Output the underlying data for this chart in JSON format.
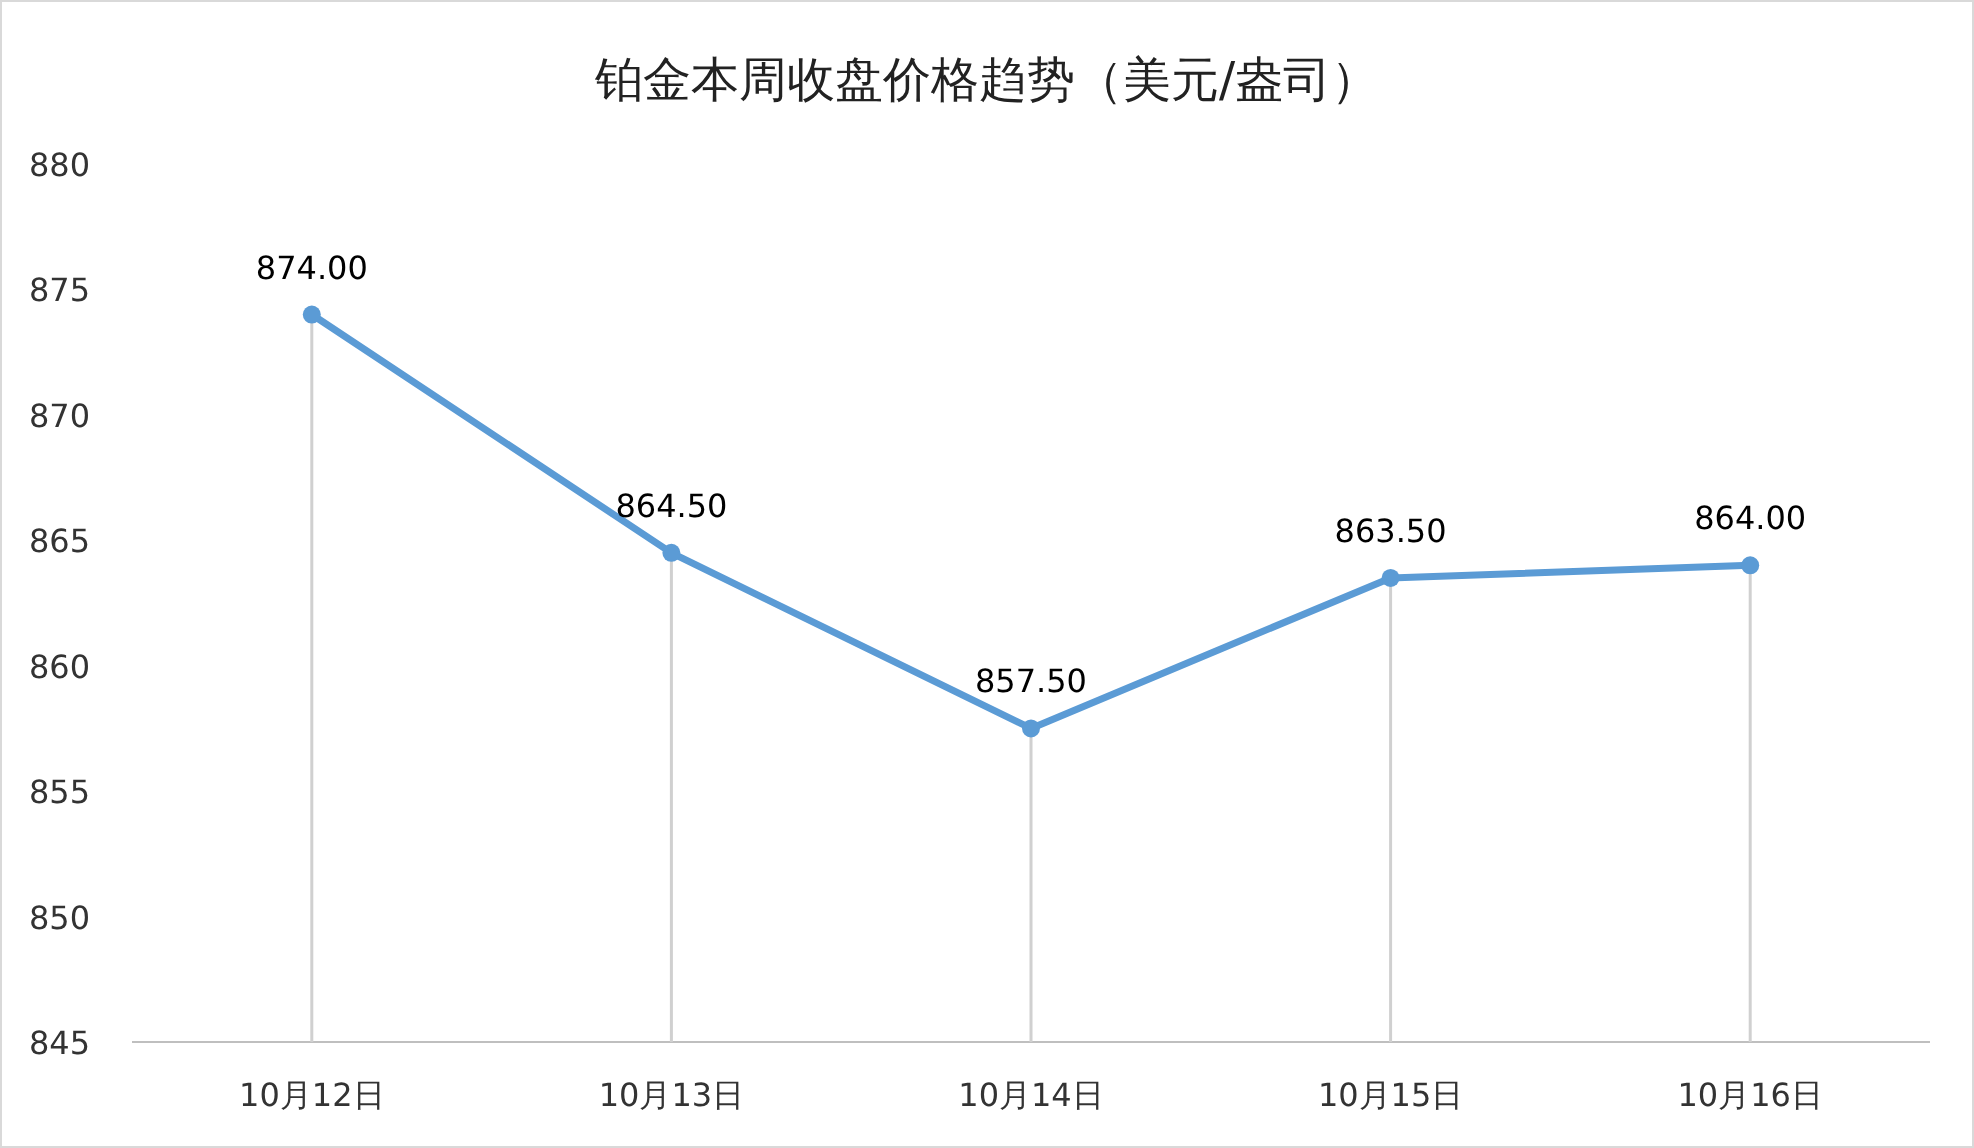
{
  "chart_data": {
    "type": "line",
    "title": "铂金本周收盘价格趋势（美元/盎司）",
    "categories": [
      "10月12日",
      "10月13日",
      "10月14日",
      "10月15日",
      "10月16日"
    ],
    "series": [
      {
        "color": "#5b9bd5",
        "values": [
          874,
          864.5,
          857.5,
          863.5,
          864
        ],
        "value_labels": [
          "874.00",
          "864.50",
          "857.50",
          "863.50",
          "864.00"
        ]
      }
    ],
    "ylim": [
      845,
      880
    ],
    "yticks": [
      845,
      850,
      855,
      860,
      865,
      870,
      875,
      880
    ],
    "marker": "circle",
    "line_style": "solid",
    "grid": "x"
  }
}
